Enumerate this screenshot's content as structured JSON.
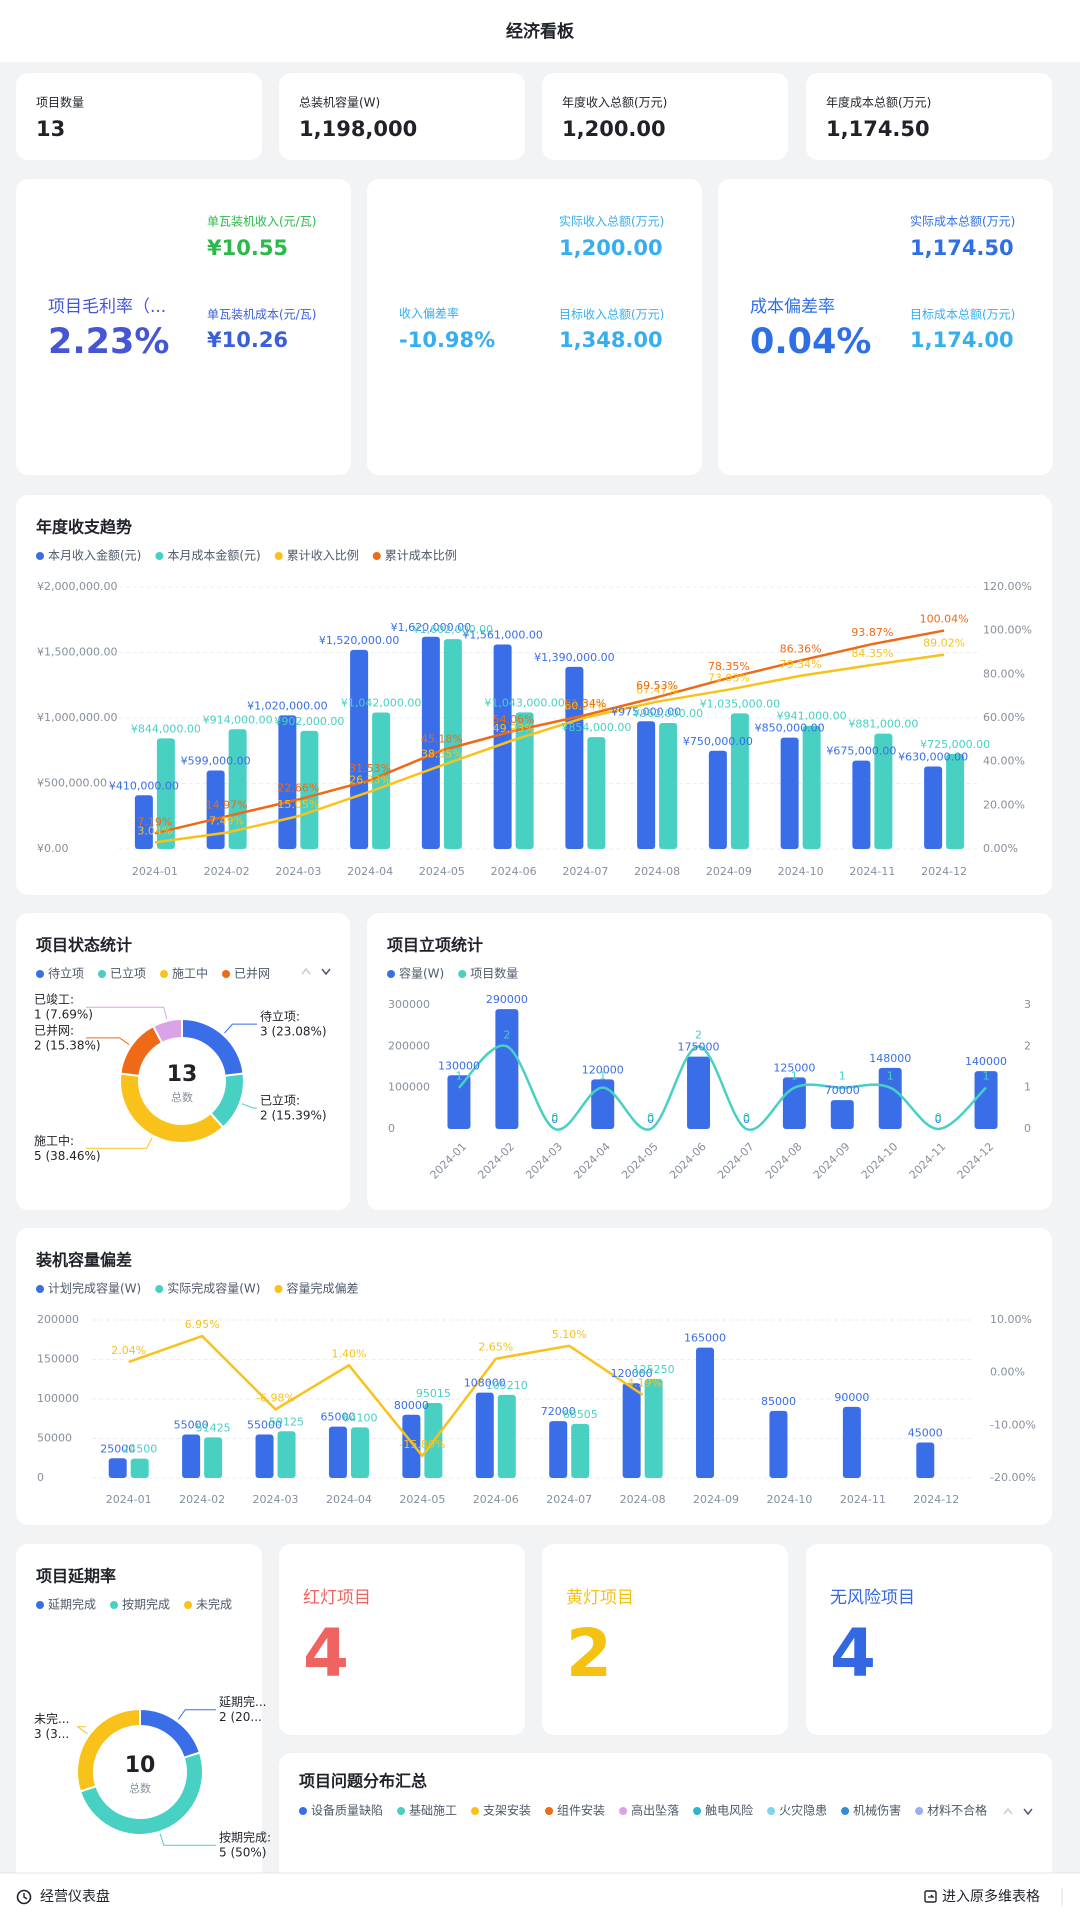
{
  "header": {
    "title": "经济看板"
  },
  "kpi_cards": [
    {
      "label": "项目数量",
      "value": "13"
    },
    {
      "label": "总装机容量(W)",
      "value": "1,198,000"
    },
    {
      "label": "年度收入总额(万元)",
      "value": "1,200.00"
    },
    {
      "label": "年度成本总额(万元)",
      "value": "1,174.50"
    }
  ],
  "metric_cards": [
    {
      "main": {
        "label": "项目毛利率（...",
        "value": "2.23%"
      },
      "items": [
        {
          "label": "单瓦装机收入(元/瓦)",
          "value": "¥10.55"
        },
        {
          "label": "单瓦装机成本(元/瓦)",
          "value": "¥10.26"
        }
      ]
    },
    {
      "main": {
        "label": "收入偏差率",
        "value": "-10.98%"
      },
      "items": [
        {
          "label": "实际收入总额(万元)",
          "value": "1,200.00"
        },
        {
          "label": "目标收入总额(万元)",
          "value": "1,348.00"
        }
      ]
    },
    {
      "main": {
        "label": "成本偏差率",
        "value": "0.04%"
      },
      "items": [
        {
          "label": "实际成本总额(万元)",
          "value": "1,174.50"
        },
        {
          "label": "目标成本总额(万元)",
          "value": "1,174.00"
        }
      ]
    }
  ],
  "chart_data": [
    {
      "type": "bar",
      "title": "年度收支趋势",
      "categories": [
        "2024-01",
        "2024-02",
        "2024-03",
        "2024-04",
        "2024-05",
        "2024-06",
        "2024-07",
        "2024-08",
        "2024-09",
        "2024-10",
        "2024-11",
        "2024-12"
      ],
      "series": [
        {
          "name": "本月收入金额(元)",
          "color": "#3a6ee8",
          "values": [
            410000,
            599000,
            1020000,
            1520000,
            1620000,
            1561000,
            1390000,
            975000,
            750000,
            850000,
            675000,
            630000
          ],
          "value_labels": [
            "¥410,000.00",
            "¥599,000.00",
            "¥1,020,000.00",
            "¥1,520,000.00",
            "¥1,620,000.00",
            "¥1,561,000.00",
            "¥1,390,000.00",
            "¥975,000.00",
            "¥750,000.00",
            "¥850,000.00",
            "¥675,000.00",
            "¥630,000.00"
          ]
        },
        {
          "name": "本月成本金额(元)",
          "color": "#48d0c2",
          "values": [
            844000,
            914000,
            902000,
            1042000,
            1602000,
            1043000,
            854000,
            962000,
            1035000,
            941000,
            881000,
            725000
          ],
          "value_labels": [
            "¥844,000.00",
            "¥914,000.00",
            "¥902,000.00",
            "¥1,042,000.00",
            "¥1,602,000.00",
            "¥1,043,000.00",
            "¥854,000.00",
            "¥962,000.00",
            "¥1,035,000.00",
            "¥941,000.00",
            "¥881,000.00",
            "¥725,000.00"
          ]
        },
        {
          "name": "累计收入比例",
          "color": "#f8c21b",
          "type": "line",
          "axis": "y2",
          "values": [
            3.04,
            7.49,
            15.05,
            26.33,
            38.35,
            49.93,
            60.24,
            67.47,
            73.03,
            79.34,
            84.35,
            89.02
          ],
          "value_labels": [
            "3.04%",
            "7.49%",
            "15.05%",
            "26.33%",
            "38.35%",
            "49.93%",
            "60.24%",
            "67.47%",
            "73.03%",
            "79.34%",
            "84.35%",
            "89.02%"
          ]
        },
        {
          "name": "累计成本比例",
          "color": "#ee6a16",
          "type": "line",
          "axis": "y2",
          "values": [
            7.19,
            14.97,
            22.66,
            31.53,
            45.18,
            54.06,
            61.34,
            69.53,
            78.35,
            86.36,
            93.87,
            100.04
          ],
          "value_labels": [
            "7.19%",
            "14.97%",
            "22.66%",
            "31.53%",
            "45.18%",
            "54.06%",
            "61.34%",
            "69.53%",
            "78.35%",
            "86.36%",
            "93.87%",
            "100.04%"
          ]
        }
      ],
      "ylim": [
        0,
        2000000
      ],
      "yticks": [
        {
          "value": 0,
          "label": "¥0.00"
        },
        {
          "value": 500000,
          "label": "¥500,000.00"
        },
        {
          "value": 1000000,
          "label": "¥1,000,000.00"
        },
        {
          "value": 1500000,
          "label": "¥1,500,000.00"
        },
        {
          "value": 2000000,
          "label": "¥2,000,000.00"
        }
      ],
      "y2lim": [
        0,
        120
      ],
      "y2ticks": [
        {
          "value": 0,
          "label": "0.00%"
        },
        {
          "value": 20,
          "label": "20.00%"
        },
        {
          "value": 40,
          "label": "40.00%"
        },
        {
          "value": 60,
          "label": "60.00%"
        },
        {
          "value": 80,
          "label": "80.00%"
        },
        {
          "value": 100,
          "label": "100.00%"
        },
        {
          "value": 120,
          "label": "120.00%"
        }
      ],
      "grid": true
    },
    {
      "type": "pie",
      "title": "项目状态统计",
      "categories": [
        "待立项",
        "已立项",
        "施工中",
        "已并网",
        "已竣工"
      ],
      "values": [
        3,
        2,
        5,
        2,
        1
      ],
      "colors": [
        "#3a6ee8",
        "#48d0c2",
        "#f8c21b",
        "#ee6a16",
        "#d9a3e8"
      ],
      "label_names": [
        "待立项:",
        "已立项:",
        "施工中:",
        "已并网:",
        "已竣工:"
      ],
      "value_labels": [
        "3 (23.08%)",
        "2 (15.39%)",
        "5 (38.46%)",
        "2 (15.38%)",
        "1 (7.69%)"
      ],
      "legend": [
        "待立项",
        "已立项",
        "施工中",
        "已并网"
      ],
      "total": 13,
      "total_label": "总数"
    },
    {
      "type": "bar",
      "title": "项目立项统计",
      "categories": [
        "2024-01",
        "2024-02",
        "2024-03",
        "2024-04",
        "2024-05",
        "2024-06",
        "2024-07",
        "2024-08",
        "2024-09",
        "2024-10",
        "2024-11",
        "2024-12"
      ],
      "series": [
        {
          "name": "容量(W)",
          "color": "#3a6ee8",
          "values": [
            130000,
            290000,
            0,
            120000,
            0,
            175000,
            0,
            125000,
            70000,
            148000,
            0,
            140000
          ]
        },
        {
          "name": "项目数量",
          "color": "#48d0c2",
          "type": "line",
          "axis": "y2",
          "smooth": true,
          "values": [
            1,
            2,
            0,
            1,
            0,
            2,
            0,
            1,
            1,
            1,
            0,
            1
          ]
        }
      ],
      "ylim": [
        0,
        300000
      ],
      "yticks": [
        0,
        100000,
        200000,
        300000
      ],
      "y2lim": [
        0,
        3
      ],
      "y2ticks": [
        0,
        1,
        2,
        3
      ],
      "grid": false
    },
    {
      "type": "bar",
      "title": "装机容量偏差",
      "categories": [
        "2024-01",
        "2024-02",
        "2024-03",
        "2024-04",
        "2024-05",
        "2024-06",
        "2024-07",
        "2024-08",
        "2024-09",
        "2024-10",
        "2024-11",
        "2024-12"
      ],
      "series": [
        {
          "name": "计划完成容量(W)",
          "color": "#3a6ee8",
          "values": [
            25000,
            55000,
            55000,
            65000,
            80000,
            108000,
            72000,
            120000,
            165000,
            85000,
            90000,
            45000
          ]
        },
        {
          "name": "实际完成容量(W)",
          "color": "#48d0c2",
          "values": [
            24500,
            51425,
            59125,
            64100,
            95015,
            105210,
            68505,
            125250,
            null,
            null,
            null,
            null
          ]
        },
        {
          "name": "容量完成偏差",
          "color": "#f8c21b",
          "type": "line",
          "axis": "y2",
          "values": [
            2.04,
            6.95,
            -6.98,
            1.4,
            -15.8,
            2.65,
            5.1,
            -4.19,
            null,
            null,
            null,
            null
          ],
          "value_labels": [
            "2.04%",
            "6.95%",
            "-6.98%",
            "1.40%",
            "-15.80%",
            "2.65%",
            "5.10%",
            "-4.19%",
            null,
            null,
            null,
            null
          ]
        }
      ],
      "ylim": [
        0,
        200000
      ],
      "yticks": [
        0,
        50000,
        100000,
        150000,
        200000
      ],
      "y2lim": [
        -20,
        10
      ],
      "y2ticks": [
        {
          "value": -20,
          "label": "-20.00%"
        },
        {
          "value": -10,
          "label": "-10.00%"
        },
        {
          "value": 0,
          "label": "0.00%"
        },
        {
          "value": 10,
          "label": "10.00%"
        }
      ],
      "grid": true
    },
    {
      "type": "pie",
      "title": "项目延期率",
      "categories": [
        "延期完成",
        "按期完成",
        "未完成"
      ],
      "values": [
        2,
        5,
        3
      ],
      "colors": [
        "#3a6ee8",
        "#48d0c2",
        "#f8c21b"
      ],
      "label_names": [
        "延期完...",
        "按期完成:",
        "未完..."
      ],
      "value_labels": [
        "2 (20...",
        "5 (50%)",
        "3 (3..."
      ],
      "legend": [
        "延期完成",
        "按期完成",
        "未完成"
      ],
      "total": 10,
      "total_label": "总数"
    }
  ],
  "risk_cards": [
    {
      "label": "红灯项目",
      "value": "4"
    },
    {
      "label": "黄灯项目",
      "value": "2"
    },
    {
      "label": "无风险项目",
      "value": "4"
    }
  ],
  "issue_summary": {
    "title": "项目问题分布汇总",
    "legend": [
      {
        "name": "设备质量缺陷",
        "color": "#3a6ee8"
      },
      {
        "name": "基础施工",
        "color": "#48d0c2"
      },
      {
        "name": "支架安装",
        "color": "#f8c21b"
      },
      {
        "name": "组件安装",
        "color": "#ee6a16"
      },
      {
        "name": "高出坠落",
        "color": "#d9a3e8"
      },
      {
        "name": "触电风险",
        "color": "#2fb4c8"
      },
      {
        "name": "火灾隐患",
        "color": "#7ed3f0"
      },
      {
        "name": "机械伤害",
        "color": "#2f8fd0"
      },
      {
        "name": "材料不合格",
        "color": "#9aaef0"
      }
    ]
  },
  "footer": {
    "left": "经营仪表盘",
    "right": "进入原多维表格"
  }
}
